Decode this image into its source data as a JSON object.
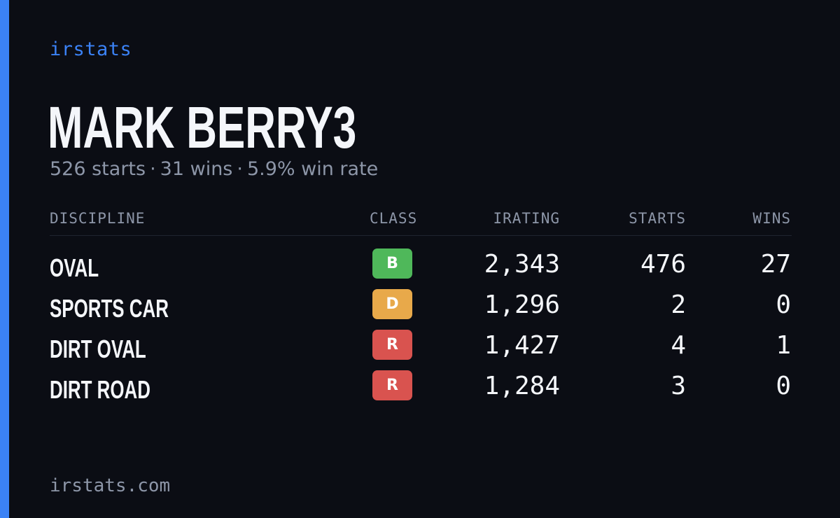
{
  "brand": "irstats",
  "driver": {
    "name": "MARK BERRY3"
  },
  "summary": {
    "starts": "526 starts",
    "wins": "31 wins",
    "win_rate": "5.9% win rate",
    "separator": "·"
  },
  "table": {
    "headers": {
      "discipline": "DISCIPLINE",
      "class": "CLASS",
      "irating": "IRATING",
      "starts": "STARTS",
      "wins": "WINS"
    },
    "rows": [
      {
        "discipline": "OVAL",
        "class": "B",
        "class_color": "#4fb85a",
        "irating": "2,343",
        "starts": "476",
        "wins": "27"
      },
      {
        "discipline": "SPORTS CAR",
        "class": "D",
        "class_color": "#e8a94a",
        "irating": "1,296",
        "starts": "2",
        "wins": "0"
      },
      {
        "discipline": "DIRT OVAL",
        "class": "R",
        "class_color": "#d9534f",
        "irating": "1,427",
        "starts": "4",
        "wins": "1"
      },
      {
        "discipline": "DIRT ROAD",
        "class": "R",
        "class_color": "#d9534f",
        "irating": "1,284",
        "starts": "3",
        "wins": "0"
      }
    ]
  },
  "footer": {
    "site": "irstats.com"
  },
  "colors": {
    "accent": "#3b82f6",
    "background": "#0b0d14",
    "muted_text": "#8d96a8",
    "primary_text": "#f4f6fa"
  }
}
